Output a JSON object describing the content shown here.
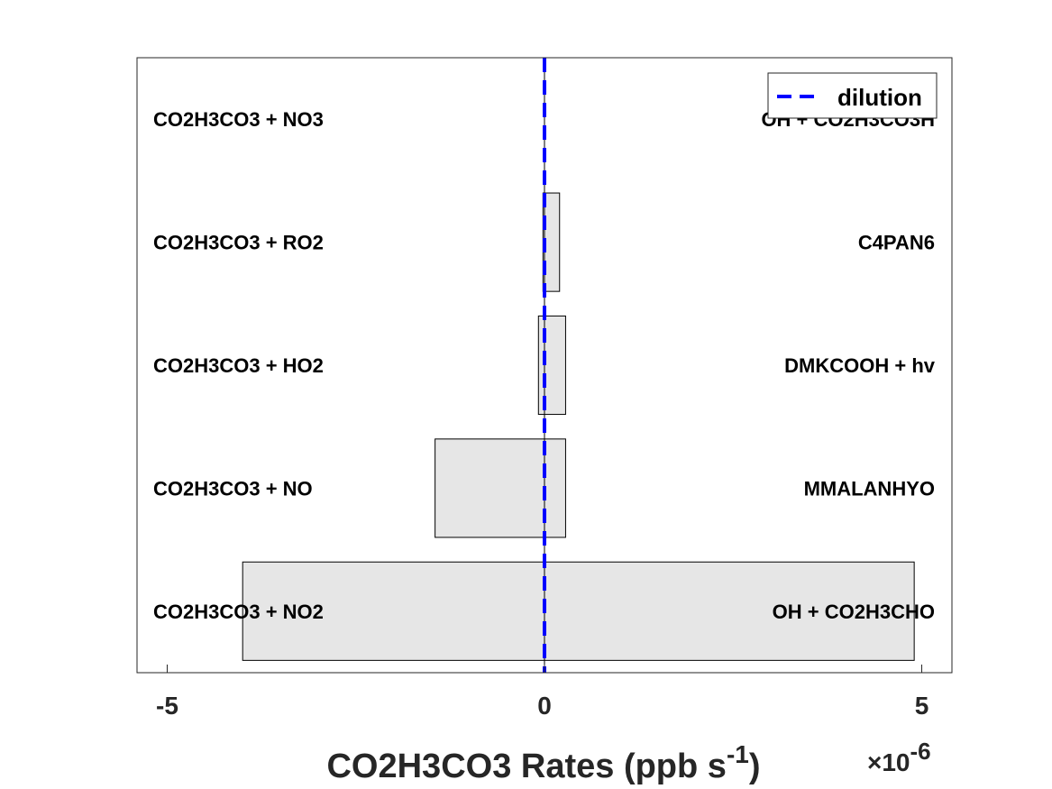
{
  "chart_data": {
    "type": "bar",
    "orientation": "horizontal",
    "xlabel": "CO2H3CO3 Rates (ppb s",
    "xlabel_superscript": "-1",
    "xlabel_close": ")",
    "x_multiplier_sign": "×",
    "x_multiplier_base": "10",
    "x_multiplier_exp": "-6",
    "xlim": [
      -5.4,
      5.4
    ],
    "xticks": [
      -5,
      0,
      5
    ],
    "xtick_labels": [
      "-5",
      "0",
      "5"
    ],
    "grid": false,
    "legend": {
      "placement": "top-right",
      "entries": [
        "dilution"
      ]
    },
    "dilution_value": 0,
    "bar_color": "#e6e6e6",
    "dilution_color": "#0000ff",
    "rows": [
      {
        "loss_label": "CO2H3CO3 + NO2",
        "loss_value": -4.0,
        "production_label": "OH + CO2H3CHO",
        "production_value": 4.9
      },
      {
        "loss_label": "CO2H3CO3 + NO",
        "loss_value": -1.45,
        "production_label": "MMALANHYO",
        "production_value": 0.28
      },
      {
        "loss_label": "CO2H3CO3 + HO2",
        "loss_value": -0.08,
        "production_label": "DMKCOOH + hv",
        "production_value": 0.28
      },
      {
        "loss_label": "CO2H3CO3 + RO2",
        "loss_value": -0.02,
        "production_label": "C4PAN6",
        "production_value": 0.2
      },
      {
        "loss_label": "CO2H3CO3 + NO3",
        "loss_value": 0,
        "production_label": "OH + CO2H3CO3H",
        "production_value": 0
      }
    ]
  }
}
